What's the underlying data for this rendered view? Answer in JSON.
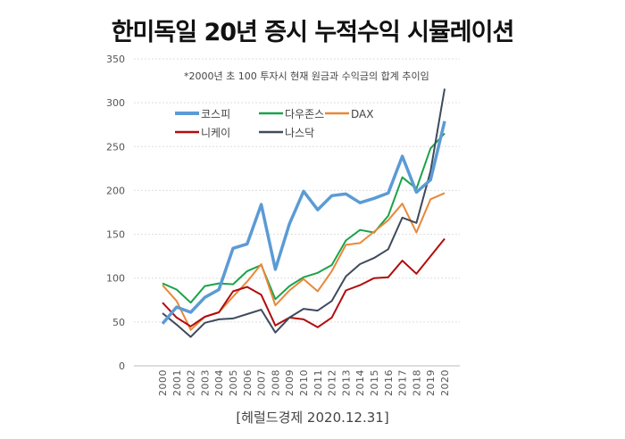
{
  "chart_data": {
    "type": "line",
    "title": "한미독일 20년 증시 누적수익 시뮬레이션",
    "subtitle": "*2000년 초 100 투자시 현재 원금과 수익금의 합계 추이임",
    "source": "[헤럴드경제 2020.12.31]",
    "xlabel": "",
    "ylabel": "",
    "ylim": [
      0,
      350
    ],
    "yticks": [
      0,
      50,
      100,
      150,
      200,
      250,
      300,
      350
    ],
    "grid": true,
    "legend_position": "top-left",
    "x": [
      "2000",
      "2001",
      "2002",
      "2003",
      "2004",
      "2005",
      "2006",
      "2007",
      "2008",
      "2009",
      "2010",
      "2011",
      "2012",
      "2013",
      "2014",
      "2015",
      "2016",
      "2017",
      "2018",
      "2019",
      "2020"
    ],
    "series": [
      {
        "name": "코스피",
        "color": "#5b9bd5",
        "values": [
          48,
          67,
          61,
          78,
          87,
          134,
          139,
          184,
          110,
          162,
          199,
          178,
          194,
          196,
          186,
          191,
          197,
          239,
          198,
          212,
          279
        ]
      },
      {
        "name": "다우존스",
        "color": "#1aa34a",
        "values": [
          94,
          87,
          72,
          91,
          94,
          93,
          108,
          115,
          76,
          91,
          101,
          106,
          115,
          143,
          155,
          152,
          171,
          215,
          202,
          248,
          265
        ]
      },
      {
        "name": "DAX",
        "color": "#e8883a",
        "values": [
          92,
          74,
          41,
          56,
          61,
          79,
          96,
          116,
          69,
          86,
          99,
          85,
          108,
          138,
          140,
          153,
          166,
          185,
          152,
          190,
          197
        ]
      },
      {
        "name": "니케이",
        "color": "#b00d0d",
        "values": [
          72,
          55,
          45,
          56,
          61,
          85,
          90,
          81,
          46,
          55,
          53,
          44,
          55,
          86,
          92,
          100,
          101,
          120,
          105,
          125,
          145
        ]
      },
      {
        "name": "나스닥",
        "color": "#3f4a5c",
        "values": [
          60,
          47,
          33,
          49,
          53,
          54,
          59,
          64,
          38,
          55,
          65,
          63,
          74,
          102,
          116,
          123,
          133,
          169,
          163,
          222,
          316
        ]
      }
    ]
  }
}
